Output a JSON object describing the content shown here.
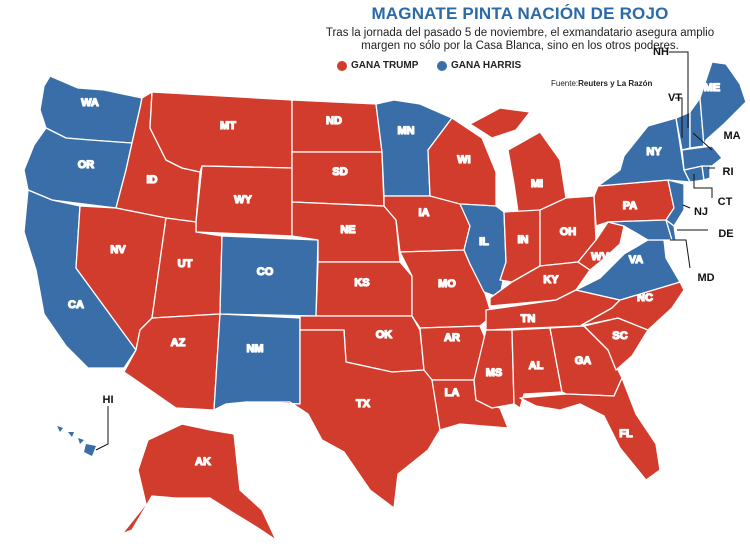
{
  "header": {
    "title": "MAGNATE PINTA NACIÓN DE ROJO",
    "subtitle_line1": "Tras la jornada del pasado 5 de noviembre, el exmandatario asegura amplio",
    "subtitle_line2": "margen no sólo por la Casa Blanca, sino en los otros poderes."
  },
  "legend": {
    "trump_label": "GANA TRUMP",
    "harris_label": "GANA HARRIS",
    "trump_color": "#d23c2c",
    "harris_color": "#3a6ea8"
  },
  "source": {
    "prefix": "Fuente:",
    "text": "Reuters y La Razón"
  },
  "states": {
    "WA": "WA",
    "OR": "OR",
    "CA": "CA",
    "ID": "ID",
    "NV": "NV",
    "MT": "MT",
    "WY": "WY",
    "UT": "UT",
    "AZ": "AZ",
    "CO": "CO",
    "NM": "NM",
    "ND": "ND",
    "SD": "SD",
    "NE": "NE",
    "KS": "KS",
    "OK": "OK",
    "TX": "TX",
    "MN": "MN",
    "IA": "IA",
    "MO": "MO",
    "AR": "AR",
    "LA": "LA",
    "WI": "WI",
    "IL": "IL",
    "MI": "MI",
    "IN": "IN",
    "OH": "OH",
    "KY": "KY",
    "TN": "TN",
    "MS": "MS",
    "AL": "AL",
    "GA": "GA",
    "FL": "FL",
    "SC": "SC",
    "NC": "NC",
    "VA": "VA",
    "WV": "WV",
    "PA": "PA",
    "NY": "NY",
    "ME": "ME",
    "AK": "AK",
    "HI": "HI",
    "NH": "NH",
    "VT": "VT",
    "MA": "MA",
    "RI": "RI",
    "CT": "CT",
    "NJ": "NJ",
    "DE": "DE",
    "MD": "MD"
  }
}
